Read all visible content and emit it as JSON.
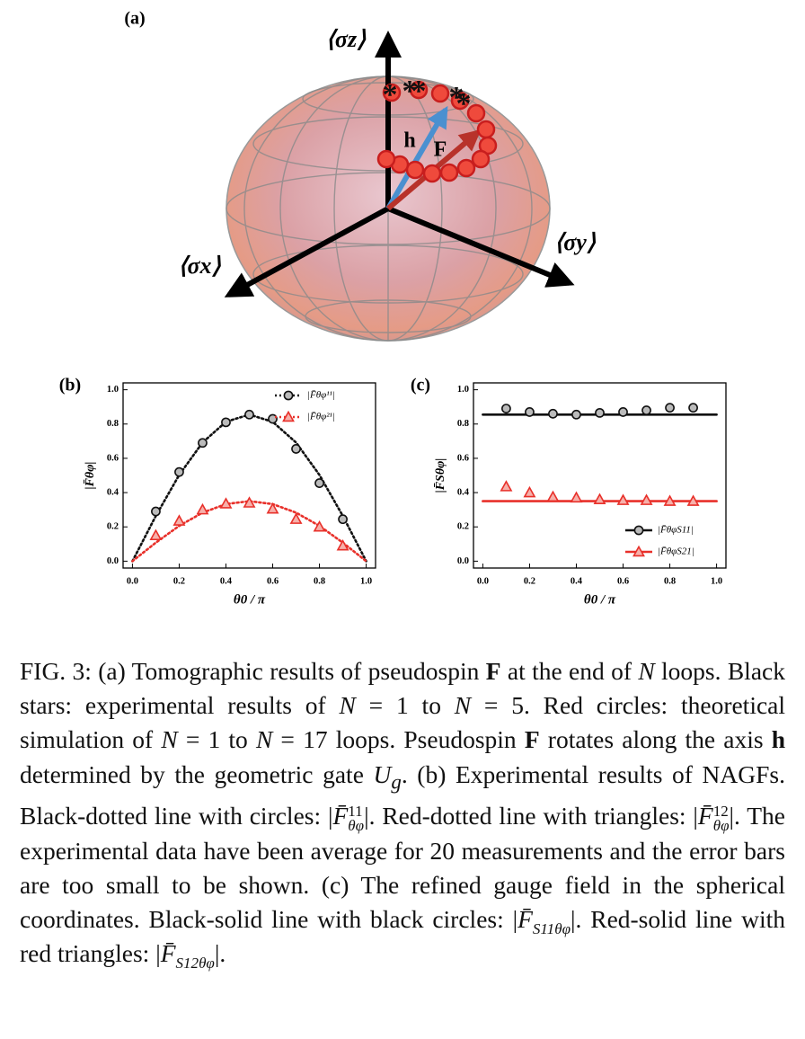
{
  "panel_a": {
    "label": "(a)",
    "axis_labels": [
      "⟨σz⟩",
      "⟨σx⟩",
      "⟨σy⟩"
    ],
    "vector_labels": [
      "h",
      "F"
    ]
  },
  "chart_data": [
    {
      "type": "scatter",
      "panel_label": "(b)",
      "x_label": "θ0 / π",
      "y_label": "|F̄θφ|",
      "x": [
        0.1,
        0.2,
        0.3,
        0.4,
        0.5,
        0.6,
        0.7,
        0.8,
        0.9
      ],
      "fit_x": [
        0,
        0.1,
        0.2,
        0.3,
        0.4,
        0.5,
        0.6,
        0.7,
        0.8,
        0.9,
        1.0
      ],
      "line_style": "dotted",
      "series": [
        {
          "name": "|F̄θφ¹¹|",
          "color": "#111111",
          "marker": "circle",
          "values": [
            0.29,
            0.52,
            0.69,
            0.81,
            0.855,
            0.83,
            0.655,
            0.455,
            0.245
          ],
          "fit": [
            0,
            0.264,
            0.503,
            0.692,
            0.813,
            0.855,
            0.813,
            0.692,
            0.503,
            0.264,
            0
          ]
        },
        {
          "name": "|F̄θφ²¹|",
          "color": "#e8302a",
          "marker": "triangle",
          "values": [
            0.15,
            0.235,
            0.3,
            0.335,
            0.34,
            0.305,
            0.245,
            0.2,
            0.09
          ],
          "fit": [
            0,
            0.108,
            0.206,
            0.283,
            0.333,
            0.35,
            0.333,
            0.283,
            0.206,
            0.108,
            0
          ]
        }
      ],
      "xlim": [
        -0.04,
        1.04
      ],
      "ylim": [
        -0.04,
        1.04
      ],
      "xticks": [
        {
          "value": 0,
          "label": "0.0"
        },
        0.2,
        0.4,
        0.6,
        0.8,
        {
          "value": 1,
          "label": "1.0"
        }
      ],
      "yticks": [
        {
          "value": 0,
          "label": "0.0"
        },
        0.2,
        0.4,
        0.6,
        0.8,
        {
          "value": 1,
          "label": "1.0"
        }
      ],
      "legend": "upper right"
    },
    {
      "type": "scatter",
      "panel_label": "(c)",
      "x_label": "θ0 / π",
      "y_label": "|F̄Sθφ|",
      "x": [
        0.1,
        0.2,
        0.3,
        0.4,
        0.5,
        0.6,
        0.7,
        0.8,
        0.9
      ],
      "fit_x": [
        0,
        1.0
      ],
      "line_style": "solid",
      "series": [
        {
          "name": "|F̄θφS11|",
          "color": "#111111",
          "marker": "circle",
          "values": [
            0.89,
            0.87,
            0.86,
            0.855,
            0.865,
            0.87,
            0.88,
            0.895,
            0.895
          ],
          "fit": [
            0.855,
            0.855
          ]
        },
        {
          "name": "|F̄θφS21|",
          "color": "#e8302a",
          "marker": "triangle",
          "values": [
            0.435,
            0.4,
            0.375,
            0.37,
            0.36,
            0.355,
            0.355,
            0.35,
            0.35
          ],
          "fit": [
            0.35,
            0.35
          ]
        }
      ],
      "xlim": [
        -0.04,
        1.04
      ],
      "ylim": [
        -0.04,
        1.04
      ],
      "xticks": [
        {
          "value": 0,
          "label": "0.0"
        },
        0.2,
        0.4,
        0.6,
        0.8,
        {
          "value": 1,
          "label": "1.0"
        }
      ],
      "yticks": [
        {
          "value": 0,
          "label": "0.0"
        },
        0.2,
        0.4,
        0.6,
        0.8,
        {
          "value": 1,
          "label": "1.0"
        }
      ],
      "legend": "lower right"
    }
  ],
  "caption": [
    "FIG. 3: (a) Tomographic results of pseudospin ",
    "F",
    " at the end of ",
    "N",
    " loops. Black stars: experimental results of ",
    "N",
    " = 1 to ",
    "N",
    " = 5. Red circles: theoretical simulation of ",
    "N",
    " = 1 to ",
    "N",
    " = 17 loops. Pseudospin ",
    "F",
    " rotates along the axis ",
    "h",
    " determined by the geometric gate ",
    "U",
    "g",
    ". (b) Experimental results of NAGFs. Black-dotted line with circles: |",
    "F̄",
    "11",
    "θφ",
    "|. Red-dotted line with triangles: |",
    "F̄",
    "12",
    "θφ",
    "|. The experimental data have been average for 20 measurements and the error bars are too small to be shown. (c) The refined gauge field in the spherical coordinates. Black-solid line with black circles: |",
    "F̄",
    "S11",
    "θφ",
    "|. Red-solid line with red triangles: |",
    "F̄",
    "S12",
    "θφ",
    "|."
  ]
}
